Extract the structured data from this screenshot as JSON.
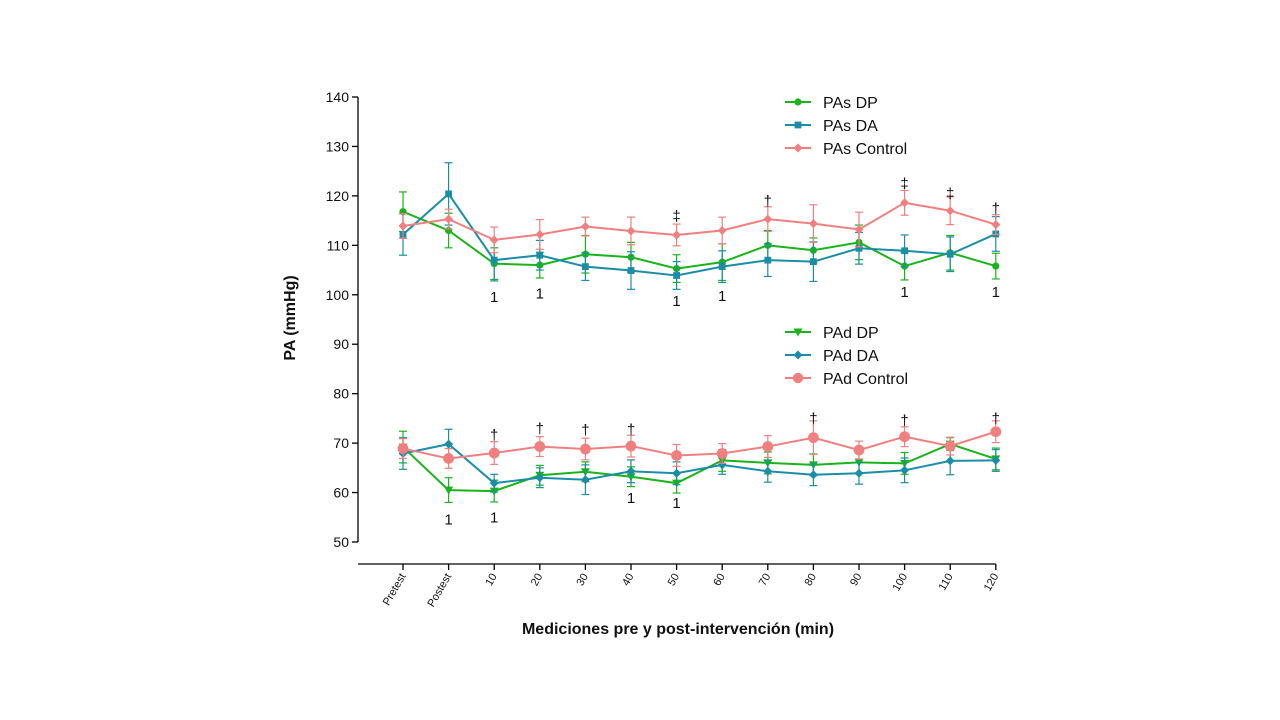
{
  "chart_data": {
    "type": "line",
    "title": "",
    "xlabel": "Mediciones pre y post-intervención (min)",
    "ylabel": "PA (mmHg)",
    "ylim": [
      50,
      140
    ],
    "yticks": [
      50,
      60,
      70,
      80,
      90,
      100,
      110,
      120,
      130,
      140
    ],
    "categories": [
      "Pretest",
      "Postest",
      "10",
      "20",
      "30",
      "40",
      "50",
      "60",
      "70",
      "80",
      "90",
      "100",
      "110",
      "120"
    ],
    "legend_groups": [
      {
        "placement": "upper-right",
        "entries": [
          "PAs DP",
          "PAs DA",
          "PAs Control"
        ]
      },
      {
        "placement": "middle-right",
        "entries": [
          "PAd DP",
          "PAd DA",
          "PAd Control"
        ]
      }
    ],
    "series": [
      {
        "name": "PAs DP",
        "color": "#1ab31a",
        "marker": "circle",
        "values": [
          116.8,
          113.0,
          106.3,
          106.0,
          108.2,
          107.6,
          105.3,
          106.6,
          110.0,
          109.0,
          110.6,
          105.8,
          108.5,
          105.8
        ],
        "errors": [
          4.0,
          3.5,
          3.2,
          2.6,
          3.8,
          3.0,
          2.8,
          3.7,
          3.0,
          2.5,
          3.5,
          2.8,
          3.5,
          2.6
        ]
      },
      {
        "name": "PAs DA",
        "color": "#1b8da6",
        "marker": "square",
        "values": [
          112.2,
          120.4,
          107.0,
          108.0,
          105.7,
          104.9,
          103.9,
          105.7,
          107.0,
          106.7,
          109.4,
          108.9,
          108.2,
          112.3
        ],
        "errors": [
          4.2,
          6.3,
          4.2,
          3.0,
          2.8,
          3.8,
          2.8,
          3.2,
          3.3,
          4.0,
          3.2,
          3.2,
          3.5,
          3.5
        ]
      },
      {
        "name": "PAs Control",
        "color": "#f08080",
        "marker": "diamond",
        "values": [
          113.9,
          115.3,
          111.1,
          112.2,
          113.8,
          112.9,
          112.1,
          113.0,
          115.3,
          114.4,
          113.2,
          118.6,
          117.0,
          114.2
        ],
        "errors": [
          2.5,
          2.0,
          2.6,
          3.0,
          1.9,
          2.8,
          2.2,
          2.7,
          2.5,
          3.8,
          3.5,
          2.5,
          2.8,
          2.0
        ]
      },
      {
        "name": "PAd DP",
        "color": "#1ab31a",
        "marker": "triangle-down",
        "values": [
          69.2,
          60.5,
          60.3,
          63.5,
          64.2,
          63.2,
          61.9,
          66.5,
          66.0,
          65.6,
          66.1,
          65.9,
          69.8,
          66.8
        ],
        "errors": [
          3.2,
          2.5,
          2.2,
          2.0,
          2.0,
          2.0,
          2.0,
          2.2,
          2.2,
          2.2,
          2.2,
          2.2,
          1.3,
          2.2
        ]
      },
      {
        "name": "PAd DA",
        "color": "#1b8da6",
        "marker": "diamond",
        "values": [
          67.9,
          69.8,
          61.9,
          63.0,
          62.6,
          64.3,
          63.9,
          65.6,
          64.3,
          63.6,
          63.9,
          64.5,
          66.4,
          66.5
        ],
        "errors": [
          3.2,
          3.0,
          1.8,
          2.0,
          3.0,
          2.3,
          2.3,
          1.9,
          2.2,
          2.2,
          2.2,
          2.5,
          2.8,
          2.2
        ]
      },
      {
        "name": "PAd Control",
        "color": "#f08080",
        "marker": "circle",
        "values": [
          68.9,
          66.9,
          68.0,
          69.3,
          68.8,
          69.4,
          67.5,
          67.9,
          69.3,
          71.1,
          68.6,
          71.3,
          69.4,
          72.3
        ],
        "errors": [
          2.0,
          2.0,
          2.3,
          2.0,
          2.2,
          2.2,
          2.2,
          2.0,
          2.2,
          3.4,
          1.8,
          2.0,
          1.8,
          2.2
        ]
      }
    ],
    "annotations": [
      {
        "text": "1",
        "x": "10",
        "y": 99.6
      },
      {
        "text": "1",
        "x": "20",
        "y": 100.3
      },
      {
        "text": "1",
        "x": "50",
        "y": 98.7
      },
      {
        "text": "1",
        "x": "60",
        "y": 99.8
      },
      {
        "text": "1",
        "x": "100",
        "y": 100.6
      },
      {
        "text": "1",
        "x": "120",
        "y": 100.6
      },
      {
        "text": "‡",
        "x": "50",
        "y": 115.9
      },
      {
        "text": "†",
        "x": "70",
        "y": 119.0
      },
      {
        "text": "‡",
        "x": "100",
        "y": 122.5
      },
      {
        "text": "‡",
        "x": "110",
        "y": 120.5
      },
      {
        "text": "†",
        "x": "120",
        "y": 117.5
      },
      {
        "text": "1",
        "x": "Postest",
        "y": 54.6
      },
      {
        "text": "1",
        "x": "10",
        "y": 55.0
      },
      {
        "text": "1",
        "x": "40",
        "y": 58.9
      },
      {
        "text": "1",
        "x": "50",
        "y": 57.9
      },
      {
        "text": "†",
        "x": "10",
        "y": 71.6
      },
      {
        "text": "†",
        "x": "20",
        "y": 73.0
      },
      {
        "text": "†",
        "x": "30",
        "y": 72.7
      },
      {
        "text": "†",
        "x": "40",
        "y": 72.8
      },
      {
        "text": "†",
        "x": "80",
        "y": 75.0
      },
      {
        "text": "†",
        "x": "100",
        "y": 74.6
      },
      {
        "text": "†",
        "x": "120",
        "y": 75.0
      }
    ]
  }
}
